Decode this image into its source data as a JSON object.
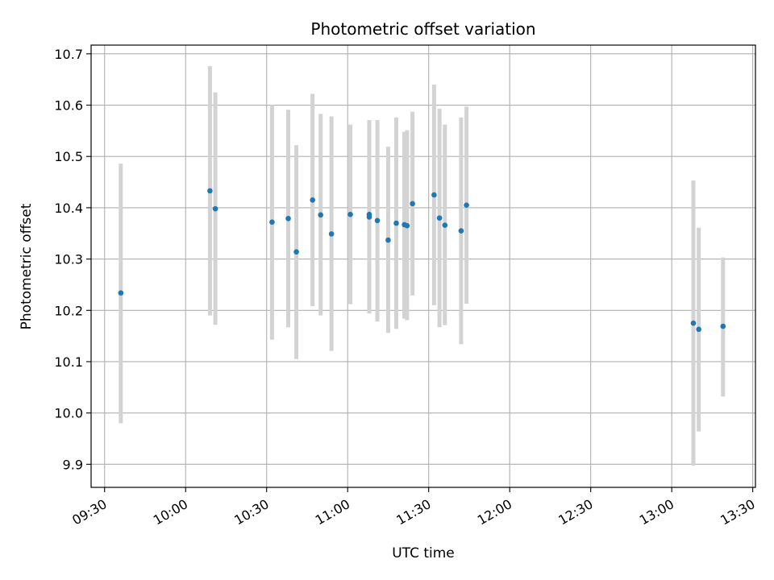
{
  "chart_data": {
    "type": "scatter",
    "title": "Photometric offset variation",
    "xlabel": "UTC time",
    "ylabel": "Photometric offset",
    "x_unit": "UTC time (HH:MM)",
    "xlim": [
      "09:25",
      "13:31"
    ],
    "ylim": [
      9.855,
      10.717
    ],
    "x_ticks": [
      "09:30",
      "10:00",
      "10:30",
      "11:00",
      "11:30",
      "12:00",
      "12:30",
      "13:00",
      "13:30"
    ],
    "y_ticks": [
      9.9,
      10.0,
      10.1,
      10.2,
      10.3,
      10.4,
      10.5,
      10.6,
      10.7
    ],
    "y_tick_labels": [
      "9.9",
      "10.0",
      "10.1",
      "10.2",
      "10.3",
      "10.4",
      "10.5",
      "10.6",
      "10.7"
    ],
    "grid": true,
    "colors": {
      "points": "#1f77b4",
      "errorbars": "#d3d3d3",
      "grid": "#b0b0b0"
    },
    "points": [
      {
        "x": "09:36",
        "y": 10.234,
        "ylow": 9.98,
        "yhigh": 10.486
      },
      {
        "x": "10:09",
        "y": 10.433,
        "ylow": 10.19,
        "yhigh": 10.676
      },
      {
        "x": "10:11",
        "y": 10.398,
        "ylow": 10.172,
        "yhigh": 10.625
      },
      {
        "x": "10:32",
        "y": 10.372,
        "ylow": 10.143,
        "yhigh": 10.6
      },
      {
        "x": "10:38",
        "y": 10.379,
        "ylow": 10.167,
        "yhigh": 10.591
      },
      {
        "x": "10:41",
        "y": 10.314,
        "ylow": 10.105,
        "yhigh": 10.522
      },
      {
        "x": "10:47",
        "y": 10.415,
        "ylow": 10.208,
        "yhigh": 10.622
      },
      {
        "x": "10:50",
        "y": 10.386,
        "ylow": 10.19,
        "yhigh": 10.583
      },
      {
        "x": "10:54",
        "y": 10.349,
        "ylow": 10.121,
        "yhigh": 10.578
      },
      {
        "x": "11:01",
        "y": 10.387,
        "ylow": 10.212,
        "yhigh": 10.562
      },
      {
        "x": "11:08",
        "y": 10.382,
        "ylow": 10.194,
        "yhigh": 10.571
      },
      {
        "x": "11:08",
        "y": 10.387,
        "ylow": 10.194,
        "yhigh": 10.571
      },
      {
        "x": "11:11",
        "y": 10.375,
        "ylow": 10.178,
        "yhigh": 10.571
      },
      {
        "x": "11:15",
        "y": 10.337,
        "ylow": 10.156,
        "yhigh": 10.519
      },
      {
        "x": "11:18",
        "y": 10.37,
        "ylow": 10.164,
        "yhigh": 10.576
      },
      {
        "x": "11:21",
        "y": 10.367,
        "ylow": 10.184,
        "yhigh": 10.548
      },
      {
        "x": "11:22",
        "y": 10.365,
        "ylow": 10.181,
        "yhigh": 10.551
      },
      {
        "x": "11:24",
        "y": 10.408,
        "ylow": 10.229,
        "yhigh": 10.587
      },
      {
        "x": "11:32",
        "y": 10.425,
        "ylow": 10.21,
        "yhigh": 10.64
      },
      {
        "x": "11:34",
        "y": 10.38,
        "ylow": 10.167,
        "yhigh": 10.593
      },
      {
        "x": "11:36",
        "y": 10.366,
        "ylow": 10.171,
        "yhigh": 10.562
      },
      {
        "x": "11:42",
        "y": 10.355,
        "ylow": 10.134,
        "yhigh": 10.576
      },
      {
        "x": "11:44",
        "y": 10.405,
        "ylow": 10.213,
        "yhigh": 10.597
      },
      {
        "x": "13:08",
        "y": 10.175,
        "ylow": 9.897,
        "yhigh": 10.453
      },
      {
        "x": "13:10",
        "y": 10.163,
        "ylow": 9.964,
        "yhigh": 10.361
      },
      {
        "x": "13:19",
        "y": 10.169,
        "ylow": 10.032,
        "yhigh": 10.303
      }
    ]
  }
}
